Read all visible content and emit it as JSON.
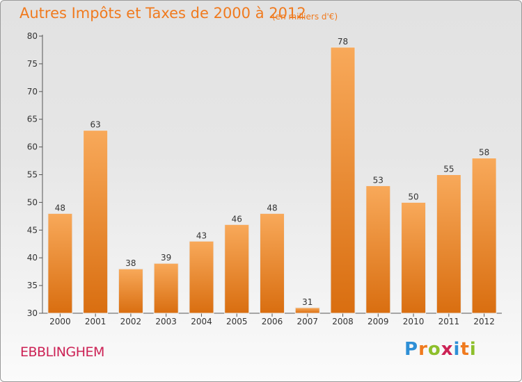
{
  "header": {
    "title": "Autres Impôts et Taxes de 2000 à 2012",
    "subtitle": "(en milliers d'€)"
  },
  "footer": {
    "commune": "EBBLINGHEM",
    "logo_text": "Proxiti"
  },
  "colors": {
    "bar_light": "#f8a95a",
    "bar_dark": "#d96e10",
    "accent": "#f07a1e",
    "commune": "#cc2255"
  },
  "chart_data": {
    "type": "bar",
    "title": "Autres Impôts et Taxes de 2000 à 2012",
    "subtitle": "(en milliers d'€)",
    "categories": [
      "2000",
      "2001",
      "2002",
      "2003",
      "2004",
      "2005",
      "2006",
      "2007",
      "2008",
      "2009",
      "2010",
      "2011",
      "2012"
    ],
    "values": [
      48,
      63,
      38,
      39,
      43,
      46,
      48,
      31,
      78,
      53,
      50,
      55,
      58
    ],
    "ylim": [
      30,
      80
    ],
    "yticks": [
      30,
      35,
      40,
      45,
      50,
      55,
      60,
      65,
      70,
      75,
      80
    ],
    "grid": false,
    "data_labels": true
  }
}
